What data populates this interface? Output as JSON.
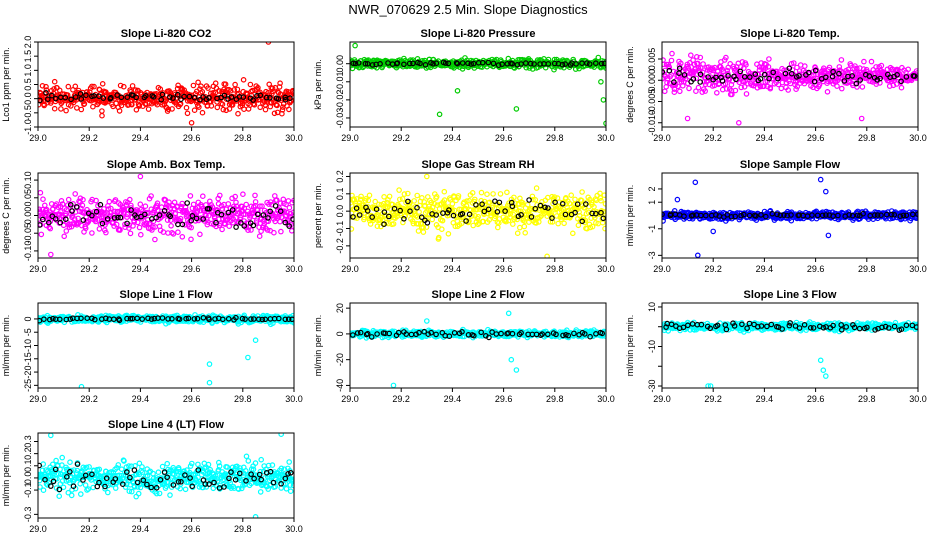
{
  "main_title": "NWR_070629  2.5 Min. Slope Diagnostics",
  "colors": {
    "red": "#ff0000",
    "green": "#00cc00",
    "magenta": "#ff00ff",
    "yellow": "#ffff00",
    "blue": "#0000ff",
    "cyan": "#00ffff",
    "highlight": "#000000"
  },
  "chart_data": [
    {
      "type": "scatter",
      "title": "Slope Li-820 CO2",
      "ylabel": "Lco1 ppm per min.",
      "xlim": [
        29.0,
        30.0
      ],
      "ylim": [
        -1.0,
        2.0
      ],
      "xticks": [
        "29.0",
        "29.2",
        "29.4",
        "29.6",
        "29.8",
        "30.0"
      ],
      "yticks": [
        -1.0,
        -0.5,
        0.0,
        0.5,
        1.0,
        1.5,
        2.0
      ],
      "ytick_labels": [
        "-1.0",
        "-0.5",
        "0.0",
        "0.5",
        "1.0",
        "1.5",
        "2.0"
      ],
      "color": "red",
      "sim": {
        "base": 0.05,
        "amp": 0.55,
        "grow": 0.4,
        "blackAmp": 0.15,
        "outliers": [
          [
            29.6,
            -0.85
          ],
          [
            29.9,
            2.0
          ],
          [
            29.25,
            -0.6
          ]
        ]
      }
    },
    {
      "type": "scatter",
      "title": "Slope Li-820 Pressure",
      "ylabel": "kPa per min.",
      "xlim": [
        29.0,
        30.0
      ],
      "ylim": [
        -0.035,
        0.012
      ],
      "xticks": [
        "29.0",
        "29.2",
        "29.4",
        "29.6",
        "29.8",
        "30.0"
      ],
      "yticks": [
        -0.03,
        -0.02,
        -0.01,
        0.0
      ],
      "ytick_labels": [
        "-0.03",
        "-0.02",
        "-0.01",
        "0.00"
      ],
      "color": "green",
      "sim": {
        "base": 0.0,
        "amp": 0.003,
        "grow": 0.0,
        "blackAmp": 0.001,
        "outliers": [
          [
            29.02,
            0.01
          ],
          [
            29.35,
            -0.028
          ],
          [
            29.65,
            -0.025
          ],
          [
            30.0,
            -0.033
          ],
          [
            29.99,
            -0.02
          ],
          [
            29.42,
            -0.015
          ],
          [
            29.98,
            -0.01
          ]
        ]
      }
    },
    {
      "type": "scatter",
      "title": "Slope Li-820 Temp.",
      "ylabel": "degrees C per min.",
      "xlim": [
        29.0,
        30.0
      ],
      "ylim": [
        -0.011,
        0.009
      ],
      "xticks": [
        "29.0",
        "29.2",
        "29.4",
        "29.6",
        "29.8",
        "30.0"
      ],
      "yticks": [
        -0.01,
        -0.005,
        0.0,
        0.005
      ],
      "ytick_labels": [
        "-0.010",
        "-0.005",
        "0.000",
        "0.005"
      ],
      "color": "magenta",
      "sim": {
        "base": 0.001,
        "amp": 0.004,
        "grow": -0.8,
        "blackAmp": 0.002,
        "outliers": [
          [
            29.1,
            -0.009
          ],
          [
            29.3,
            -0.01
          ],
          [
            29.78,
            -0.009
          ]
        ]
      }
    },
    {
      "type": "scatter",
      "title": "Slope Amb. Box Temp.",
      "ylabel": "degrees C per min.",
      "xlim": [
        29.0,
        30.0
      ],
      "ylim": [
        -0.12,
        0.12
      ],
      "xticks": [
        "29.0",
        "29.2",
        "29.4",
        "29.6",
        "29.8",
        "30.0"
      ],
      "yticks": [
        -0.1,
        -0.05,
        0.0,
        0.05,
        0.1
      ],
      "ytick_labels": [
        "-0.10",
        "-0.05",
        "0.00",
        "0.05",
        "0.10"
      ],
      "color": "magenta",
      "sim": {
        "base": 0.0,
        "amp": 0.06,
        "grow": 0.0,
        "blackAmp": 0.04,
        "outliers": [
          [
            29.05,
            -0.11
          ],
          [
            29.4,
            0.11
          ]
        ]
      }
    },
    {
      "type": "scatter",
      "title": "Slope Gas Stream RH",
      "ylabel": "percent per min.",
      "xlim": [
        29.0,
        30.0
      ],
      "ylim": [
        -0.27,
        0.22
      ],
      "xticks": [
        "29.0",
        "29.2",
        "29.4",
        "29.6",
        "29.8",
        "30.0"
      ],
      "yticks": [
        -0.2,
        -0.1,
        0.0,
        0.1,
        0.2
      ],
      "ytick_labels": [
        "-0.2",
        "-0.1",
        "0.0",
        "0.1",
        "0.2"
      ],
      "color": "yellow",
      "sim": {
        "base": 0.0,
        "amp": 0.13,
        "grow": 0.0,
        "blackAmp": 0.08,
        "outliers": [
          [
            29.77,
            -0.26
          ],
          [
            29.3,
            0.2
          ]
        ]
      }
    },
    {
      "type": "scatter",
      "title": "Slope Sample Flow",
      "ylabel": "ml/min per min.",
      "xlim": [
        29.0,
        30.0
      ],
      "ylim": [
        -3.2,
        3.2
      ],
      "xticks": [
        "29.0",
        "29.2",
        "29.4",
        "29.6",
        "29.8",
        "30.0"
      ],
      "yticks": [
        -3,
        -1,
        1,
        2
      ],
      "ytick_labels": [
        "-3",
        "-1",
        "1",
        "2"
      ],
      "color": "blue",
      "sim": {
        "base": 0.0,
        "amp": 0.35,
        "grow": 0.0,
        "blackAmp": 0.15,
        "outliers": [
          [
            29.13,
            2.5
          ],
          [
            29.14,
            -3.0
          ],
          [
            29.62,
            2.7
          ],
          [
            29.64,
            1.8
          ],
          [
            29.65,
            -1.5
          ],
          [
            29.06,
            1.2
          ],
          [
            29.2,
            -1.2
          ]
        ]
      }
    },
    {
      "type": "scatter",
      "title": "Slope Line 1 Flow",
      "ylabel": "ml/min per min.",
      "xlim": [
        29.0,
        30.0
      ],
      "ylim": [
        -26,
        6
      ],
      "xticks": [
        "29.0",
        "29.2",
        "29.4",
        "29.6",
        "29.8",
        "30.0"
      ],
      "yticks": [
        -25,
        -20,
        -15,
        -10,
        -5,
        0
      ],
      "ytick_labels": [
        "-25",
        "-20",
        "-15",
        "-10",
        "-5",
        "0"
      ],
      "color": "cyan",
      "sim": {
        "base": 0.0,
        "amp": 1.6,
        "grow": 0.0,
        "blackAmp": 0.5,
        "outliers": [
          [
            29.17,
            -25.5
          ],
          [
            29.67,
            -17
          ],
          [
            29.67,
            -24
          ],
          [
            29.82,
            -14.5
          ],
          [
            29.85,
            -8
          ]
        ]
      }
    },
    {
      "type": "scatter",
      "title": "Slope Line 2 Flow",
      "ylabel": "ml/min per min.",
      "xlim": [
        29.0,
        30.0
      ],
      "ylim": [
        -42,
        24
      ],
      "xticks": [
        "29.0",
        "29.2",
        "29.4",
        "29.6",
        "29.8",
        "30.0"
      ],
      "yticks": [
        -40,
        -20,
        0,
        20
      ],
      "ytick_labels": [
        "-40",
        "-20",
        "0",
        "20"
      ],
      "color": "cyan",
      "sim": {
        "base": 0.0,
        "amp": 3.0,
        "grow": 0.0,
        "blackAmp": 2.5,
        "outliers": [
          [
            29.17,
            -40
          ],
          [
            29.63,
            -20
          ],
          [
            29.65,
            -28
          ],
          [
            29.62,
            16
          ],
          [
            29.3,
            10
          ]
        ]
      }
    },
    {
      "type": "scatter",
      "title": "Slope Line 3 Flow",
      "ylabel": "ml/min per min.",
      "xlim": [
        29.0,
        30.0
      ],
      "ylim": [
        -31,
        12
      ],
      "xticks": [
        "29.0",
        "29.2",
        "29.4",
        "29.6",
        "29.8",
        "30.0"
      ],
      "yticks": [
        -30,
        -20,
        -10,
        0,
        10
      ],
      "ytick_labels": [
        "-30",
        "",
        "-10",
        "",
        "10"
      ],
      "color": "cyan",
      "sim": {
        "base": 0.0,
        "amp": 2.2,
        "grow": 0.0,
        "blackAmp": 2.0,
        "outliers": [
          [
            29.18,
            -30
          ],
          [
            29.19,
            -30
          ],
          [
            29.63,
            -22
          ],
          [
            29.64,
            -25
          ],
          [
            29.62,
            -17
          ]
        ]
      }
    },
    {
      "type": "scatter",
      "title": "Slope Line 4 (LT) Flow",
      "ylabel": "ml/min per min.",
      "xlim": [
        29.0,
        30.0
      ],
      "ylim": [
        -0.33,
        0.37
      ],
      "xticks": [
        "29.0",
        "29.2",
        "29.4",
        "29.6",
        "29.8",
        "30.0"
      ],
      "yticks": [
        -0.3,
        -0.1,
        0.0,
        0.1,
        0.2,
        0.3
      ],
      "ytick_labels": [
        "-0.3",
        "-0.1",
        "0.0",
        "0.1",
        "0.2",
        "0.3"
      ],
      "color": "cyan",
      "sim": {
        "base": 0.0,
        "amp": 0.15,
        "grow": 0.0,
        "blackAmp": 0.12,
        "outliers": [
          [
            29.05,
            0.35
          ],
          [
            29.95,
            0.36
          ],
          [
            29.85,
            -0.32
          ]
        ]
      }
    }
  ]
}
